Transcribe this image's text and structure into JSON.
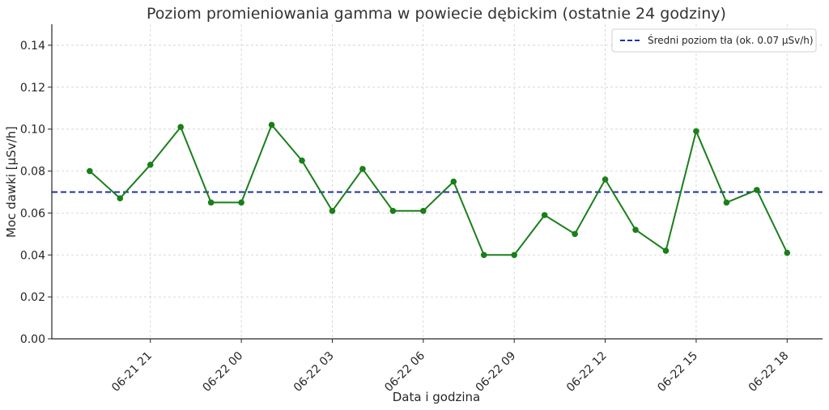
{
  "chart_data": {
    "type": "line",
    "title": "Poziom promieniowania gamma w powiecie dębickim (ostatnie 24 godziny)",
    "xlabel": "Data i godzina",
    "ylabel": "Moc dawki [µSv/h]",
    "ylim": [
      0,
      0.15
    ],
    "yticks": [
      0.0,
      0.02,
      0.04,
      0.06,
      0.08,
      0.1,
      0.12,
      0.14
    ],
    "ytick_labels": [
      "0.00",
      "0.02",
      "0.04",
      "0.06",
      "0.08",
      "0.10",
      "0.12",
      "0.14"
    ],
    "xlim": [
      "2024-06-21 17:45",
      "2024-06-22 19:10"
    ],
    "xticks": [
      "2024-06-21 21:00",
      "2024-06-22 00:00",
      "2024-06-22 03:00",
      "2024-06-22 06:00",
      "2024-06-22 09:00",
      "2024-06-22 12:00",
      "2024-06-22 15:00",
      "2024-06-22 18:00"
    ],
    "xtick_labels": [
      "06-21 21",
      "06-22 00",
      "06-22 03",
      "06-22 06",
      "06-22 09",
      "06-22 12",
      "06-22 15",
      "06-22 18"
    ],
    "grid": true,
    "legend_position": "top-right",
    "series": [
      {
        "color": "#1a7f1a",
        "marker": "circle",
        "x": [
          "2024-06-21 19:00",
          "2024-06-21 20:00",
          "2024-06-21 21:00",
          "2024-06-21 22:00",
          "2024-06-21 23:00",
          "2024-06-22 00:00",
          "2024-06-22 01:00",
          "2024-06-22 02:00",
          "2024-06-22 03:00",
          "2024-06-22 04:00",
          "2024-06-22 05:00",
          "2024-06-22 06:00",
          "2024-06-22 07:00",
          "2024-06-22 08:00",
          "2024-06-22 09:00",
          "2024-06-22 10:00",
          "2024-06-22 11:00",
          "2024-06-22 12:00",
          "2024-06-22 13:00",
          "2024-06-22 14:00",
          "2024-06-22 15:00",
          "2024-06-22 16:00",
          "2024-06-22 17:00",
          "2024-06-22 18:00"
        ],
        "values": [
          0.08,
          0.067,
          0.083,
          0.101,
          0.065,
          0.065,
          0.102,
          0.085,
          0.061,
          0.081,
          0.061,
          0.061,
          0.075,
          0.04,
          0.04,
          0.059,
          0.05,
          0.076,
          0.052,
          0.042,
          0.099,
          0.065,
          0.071,
          0.041
        ]
      }
    ],
    "reference_lines": [
      {
        "name": "Średni poziom tła (ok. 0.07 µSv/h)",
        "y": 0.07,
        "color": "#1f2fa8",
        "style": "dashed"
      }
    ]
  }
}
